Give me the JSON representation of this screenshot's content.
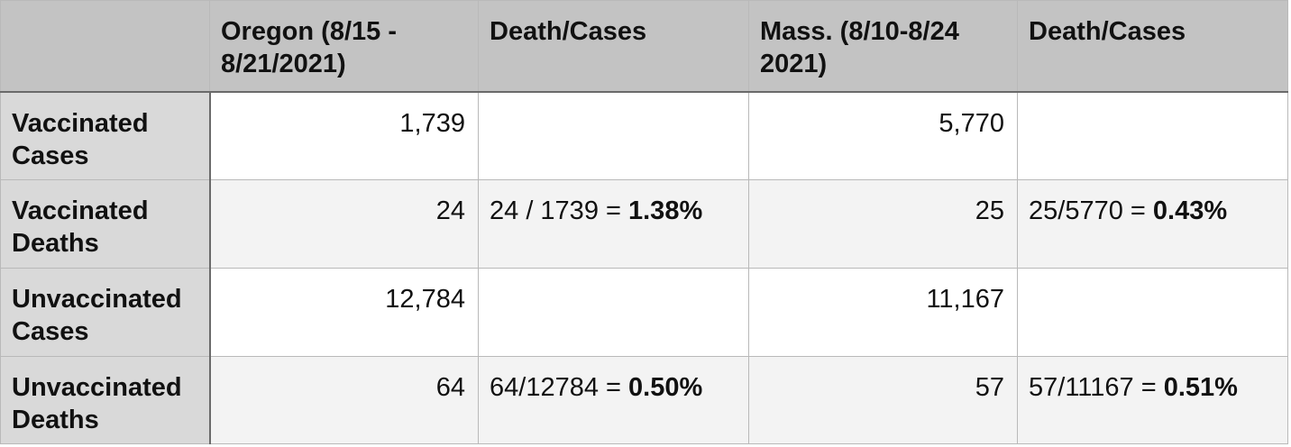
{
  "table": {
    "headers": [
      "",
      "Oregon (8/15 - 8/21/2021)",
      "Death/Cases",
      "Mass.  (8/10-8/24 2021)",
      "Death/Cases"
    ],
    "rows": [
      {
        "label": "Vaccinated Cases",
        "oregon": "1,739",
        "oregon_ratio_expr": "",
        "oregon_ratio_pct": "",
        "mass": "5,770",
        "mass_ratio_expr": "",
        "mass_ratio_pct": ""
      },
      {
        "label": "Vaccinated Deaths",
        "oregon": "24",
        "oregon_ratio_expr": "24 / 1739 = ",
        "oregon_ratio_pct": "1.38%",
        "mass": "25",
        "mass_ratio_expr": "25/5770 = ",
        "mass_ratio_pct": "0.43%"
      },
      {
        "label": "Unvaccinated Cases",
        "oregon": "12,784",
        "oregon_ratio_expr": "",
        "oregon_ratio_pct": "",
        "mass": "11,167",
        "mass_ratio_expr": "",
        "mass_ratio_pct": ""
      },
      {
        "label": "Unvaccinated Deaths",
        "oregon": "64",
        "oregon_ratio_expr": "64/12784 = ",
        "oregon_ratio_pct": "0.50%",
        "mass": "57",
        "mass_ratio_expr": "57/11167 = ",
        "mass_ratio_pct": "0.51%"
      }
    ]
  },
  "colors": {
    "header_bg": "#c3c3c3",
    "label_bg": "#d9d9d9",
    "row_alt_bg": "#f3f3f3",
    "row_bg": "#ffffff",
    "grid": "#b9b9b9"
  }
}
